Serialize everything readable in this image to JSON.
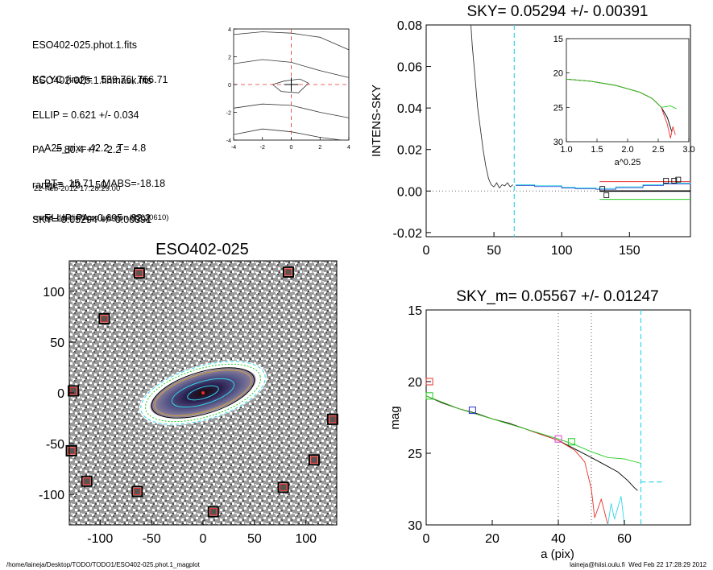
{
  "header": {
    "file_lines": [
      "ESO402-025.phot.1.fits",
      "ESO402-025.1.finmask.fits"
    ],
    "fit_lines": [
      "XC,YC (iraf)=   539.76, 766.71",
      "ELLIP = 0.621 +/- 0.034",
      "PA    = 80.4 +/-   2.2",
      "range=  40.-   50.",
      "SKY= 0.05294 +/- 0.00391"
    ],
    "param_lines": [
      "A25_pix= 42.2   T= 4.8",
      "BT=  15.71   MABS=-18.18",
      "ELLIP, PA= 0.695   82.2"
    ],
    "meta_lines": [
      "22-Feb-2012 17:28:29.00",
      "make_datalist0.pro (version HS230610)"
    ]
  },
  "footer": {
    "path": "/home/laineja/Desktop/TODO/TODO1/ESO402-025.phot.1_magplot",
    "user_date": "laineja@hiisi.oulu.fi  Wed Feb 22 17:28:29 2012"
  },
  "colors": {
    "red": "#e8302c",
    "green": "#22cc22",
    "cyan": "#33d6e8",
    "blue": "#2233cc",
    "magenta": "#e040d0",
    "black": "#000000",
    "gray_bg": "#8c8c8c"
  },
  "chart_data": [
    {
      "id": "centering",
      "type": "line",
      "title": "",
      "xlim": [
        -4,
        4
      ],
      "ylim": [
        -4,
        4
      ],
      "xticks": [
        "-4",
        "-2",
        "0",
        "2",
        "4"
      ],
      "yticks": [
        "-4",
        "-2",
        "0",
        "2",
        "4"
      ],
      "contours": [
        [
          [
            -4,
            3.6
          ],
          [
            -2,
            3.8
          ],
          [
            0,
            3.7
          ],
          [
            2,
            3.4
          ],
          [
            4,
            2.5
          ]
        ],
        [
          [
            -4,
            1.5
          ],
          [
            -2,
            1.8
          ],
          [
            0,
            1.6
          ],
          [
            2,
            1.0
          ],
          [
            4,
            0.5
          ]
        ],
        [
          [
            -1.3,
            0.0
          ],
          [
            -0.5,
            0.25
          ],
          [
            0.6,
            0.4
          ],
          [
            1.2,
            0.1
          ],
          [
            0.5,
            -0.6
          ],
          [
            -0.7,
            -0.5
          ],
          [
            -1.3,
            0.0
          ]
        ],
        [
          [
            -4,
            -1.7
          ],
          [
            -2,
            -1.4
          ],
          [
            0,
            -1.5
          ],
          [
            2,
            -2.0
          ],
          [
            4,
            -2.4
          ]
        ],
        [
          [
            -4,
            -3.6
          ],
          [
            -2,
            -3.2
          ],
          [
            0,
            -3.4
          ],
          [
            2,
            -3.8
          ],
          [
            3.5,
            -4
          ]
        ]
      ],
      "center": [
        0,
        0
      ],
      "crosshair_color": "red"
    },
    {
      "id": "galaxy",
      "type": "heatmap",
      "title": "ESO402-025",
      "xlim": [
        -130,
        130
      ],
      "ylim": [
        -130,
        130
      ],
      "xticks": [
        "-100",
        "-50",
        "0",
        "50",
        "100"
      ],
      "yticks": [
        "-100",
        "-50",
        "0",
        "50",
        "100"
      ],
      "ellipse": {
        "center": [
          0,
          0
        ],
        "pa_deg": 80.4,
        "ellip": 0.621
      },
      "stars": [
        [
          -62,
          118
        ],
        [
          83,
          119
        ],
        [
          -96,
          73
        ],
        [
          -126,
          2
        ],
        [
          -128,
          -57
        ],
        [
          -113,
          -87
        ],
        [
          -64,
          -97
        ],
        [
          78,
          -93
        ],
        [
          108,
          -66
        ],
        [
          126,
          -26
        ],
        [
          10,
          -117
        ]
      ]
    },
    {
      "id": "sky",
      "type": "line",
      "title": "SKY= 0.05294 +/- 0.00391",
      "xlabel": "",
      "ylabel": "INTENS-SKY",
      "xlim": [
        0,
        195
      ],
      "ylim": [
        -0.022,
        0.08
      ],
      "xticks": [
        "0",
        "50",
        "100",
        "150"
      ],
      "yticks": [
        "-0.02",
        "0.00",
        "0.02",
        "0.04",
        "0.06",
        "0.08"
      ],
      "vline_cyan": 65,
      "profile": [
        [
          33,
          0.08
        ],
        [
          34,
          0.07
        ],
        [
          36,
          0.055
        ],
        [
          38,
          0.04
        ],
        [
          40,
          0.03
        ],
        [
          42,
          0.02
        ],
        [
          44,
          0.012
        ],
        [
          46,
          0.006
        ],
        [
          48,
          0.003
        ],
        [
          50,
          0.002
        ],
        [
          52,
          0.004
        ],
        [
          54,
          0.0015
        ],
        [
          56,
          0.003
        ],
        [
          58,
          0.0025
        ],
        [
          60,
          0.004
        ],
        [
          62,
          0.002
        ],
        [
          64,
          0.003
        ]
      ],
      "sky_steps": [
        [
          66,
          0.003
        ],
        [
          80,
          0.0025
        ],
        [
          100,
          0.0018
        ],
        [
          110,
          0.0015
        ],
        [
          125,
          0.0012
        ],
        [
          140,
          0.002
        ],
        [
          160,
          0.003
        ],
        [
          175,
          0.0038
        ],
        [
          195,
          0.004
        ]
      ],
      "markers": [
        [
          130,
          0.001
        ],
        [
          133,
          -0.002
        ],
        [
          177,
          0.005
        ],
        [
          183,
          0.005
        ],
        [
          186,
          0.0055
        ]
      ],
      "hlines": {
        "red": 0.0045,
        "black": 0.0,
        "green": -0.004
      },
      "inset": {
        "xlabel": "a^0.25",
        "xlim": [
          1.0,
          3.0
        ],
        "ylim": [
          30,
          15
        ],
        "xticks": [
          "1.0",
          "1.5",
          "2.0",
          "2.5",
          "3.0"
        ],
        "yticks": [
          "15",
          "20",
          "25",
          "30"
        ],
        "curve": [
          [
            1.0,
            20.9
          ],
          [
            1.4,
            21.2
          ],
          [
            1.8,
            21.8
          ],
          [
            2.2,
            22.8
          ],
          [
            2.4,
            23.7
          ],
          [
            2.55,
            25.0
          ],
          [
            2.65,
            26.5
          ],
          [
            2.72,
            28.5
          ]
        ]
      }
    },
    {
      "id": "mag",
      "type": "line",
      "title": "SKY_m=  0.05567 +/- 0.01247",
      "xlabel": "a (pix)",
      "ylabel": "mag",
      "xlim": [
        0,
        80
      ],
      "ylim": [
        30,
        15
      ],
      "xticks": [
        "0",
        "20",
        "40",
        "60"
      ],
      "yticks": [
        "15",
        "20",
        "25",
        "30"
      ],
      "vlines_dotted": [
        40,
        50
      ],
      "vline_cyan": 65,
      "series": [
        {
          "color": "black",
          "values": [
            [
              0,
              21.0
            ],
            [
              5,
              21.5
            ],
            [
              10,
              21.9
            ],
            [
              15,
              22.2
            ],
            [
              20,
              22.6
            ],
            [
              25,
              22.9
            ],
            [
              30,
              23.3
            ],
            [
              35,
              23.7
            ],
            [
              40,
              24.1
            ],
            [
              45,
              24.7
            ],
            [
              50,
              25.3
            ],
            [
              54,
              25.8
            ],
            [
              58,
              26.3
            ],
            [
              61,
              26.9
            ],
            [
              63,
              27.4
            ],
            [
              64,
              27.6
            ]
          ]
        },
        {
          "color": "red",
          "values": [
            [
              0,
              21.0
            ],
            [
              10,
              21.9
            ],
            [
              20,
              22.6
            ],
            [
              30,
              23.3
            ],
            [
              40,
              24.1
            ],
            [
              45,
              24.8
            ],
            [
              48,
              25.6
            ],
            [
              50,
              27.5
            ],
            [
              51,
              29.5
            ],
            [
              53,
              28.2
            ],
            [
              55,
              30.0
            ]
          ]
        },
        {
          "color": "green",
          "values": [
            [
              0,
              21.0
            ],
            [
              10,
              21.9
            ],
            [
              20,
              22.6
            ],
            [
              30,
              23.3
            ],
            [
              40,
              24.0
            ],
            [
              45,
              24.4
            ],
            [
              50,
              24.9
            ],
            [
              55,
              25.3
            ],
            [
              60,
              25.4
            ],
            [
              65,
              25.7
            ]
          ]
        }
      ],
      "sky_level": 27.0,
      "markers": [
        {
          "color": "red",
          "x": 1,
          "y": 20.0
        },
        {
          "color": "green",
          "x": 1,
          "y": 21.0
        },
        {
          "color": "blue",
          "x": 14,
          "y": 22.0
        },
        {
          "color": "magenta",
          "x": 40,
          "y": 24.0
        },
        {
          "color": "green",
          "x": 44,
          "y": 24.2
        }
      ]
    }
  ]
}
